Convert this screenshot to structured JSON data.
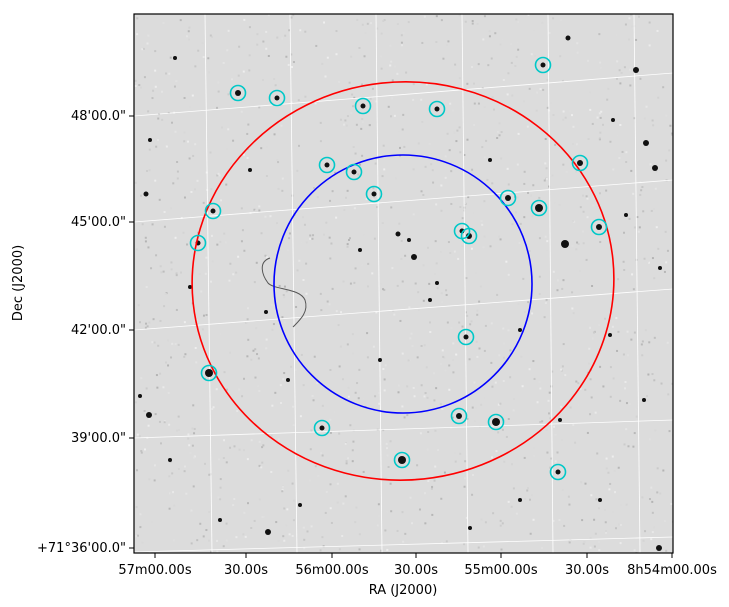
{
  "chart_data": {
    "type": "scatter",
    "title": "",
    "xlabel": "RA (J2000)",
    "ylabel": "Dec (J2000)",
    "xlim_arcsec": [
      0,
      160
    ],
    "ylim_arcsec": [
      0,
      720
    ],
    "x_ticks": [
      {
        "label": "57m00.00s",
        "value": 0
      },
      {
        "label": "30.00s",
        "value": 30
      },
      {
        "label": "56m00.00s",
        "value": 60
      },
      {
        "label": "30.00s",
        "value": 90
      },
      {
        "label": "55m00.00s",
        "value": 120
      },
      {
        "label": "30.00s",
        "value": 150
      },
      {
        "label": "8h54m00.00s",
        "value": 180
      }
    ],
    "y_ticks": [
      {
        "label": "+71°36'00.0\"",
        "value": 0
      },
      {
        "label": "39'00.0\"",
        "value": 180
      },
      {
        "label": "42'00.0\"",
        "value": 360
      },
      {
        "label": "45'00.0\"",
        "value": 540
      },
      {
        "label": "48'00.0\"",
        "value": 720
      }
    ],
    "grid": true,
    "background": "grayscale sky image",
    "circles": [
      {
        "name": "inner",
        "color": "#0000ff"
      },
      {
        "name": "outer",
        "color": "#ff0000"
      }
    ],
    "markers": {
      "color": "#00c8c8",
      "count": 26
    }
  }
}
